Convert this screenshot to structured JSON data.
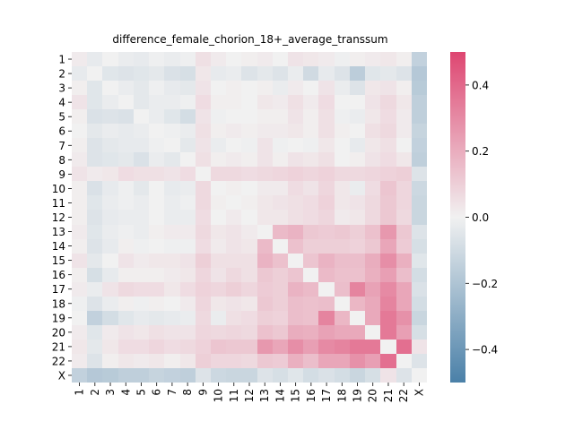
{
  "chart_data": {
    "type": "heatmap",
    "title": "difference_female_chorion_18+_average_transsum",
    "xlabel": "",
    "ylabel": "",
    "x_categories": [
      "1",
      "2",
      "3",
      "4",
      "5",
      "6",
      "7",
      "8",
      "9",
      "10",
      "11",
      "12",
      "13",
      "14",
      "15",
      "16",
      "17",
      "18",
      "19",
      "20",
      "21",
      "22",
      "X"
    ],
    "y_categories": [
      "1",
      "2",
      "3",
      "4",
      "5",
      "6",
      "7",
      "8",
      "9",
      "10",
      "11",
      "12",
      "13",
      "14",
      "15",
      "16",
      "17",
      "18",
      "19",
      "20",
      "21",
      "22",
      "X"
    ],
    "values": [
      [
        0.02,
        -0.03,
        0.0,
        -0.02,
        -0.03,
        -0.01,
        -0.02,
        -0.01,
        0.05,
        0.02,
        0.0,
        0.01,
        0.02,
        0.0,
        0.04,
        0.03,
        0.02,
        -0.01,
        0.01,
        0.02,
        0.03,
        0.01,
        -0.14
      ],
      [
        -0.03,
        0.0,
        -0.05,
        -0.06,
        -0.05,
        -0.04,
        -0.07,
        -0.08,
        0.03,
        -0.03,
        -0.02,
        -0.06,
        -0.04,
        -0.06,
        -0.02,
        -0.1,
        -0.03,
        -0.06,
        -0.16,
        -0.05,
        -0.04,
        -0.06,
        -0.18
      ],
      [
        0.01,
        -0.05,
        0.0,
        -0.02,
        -0.04,
        -0.01,
        -0.03,
        -0.04,
        0.04,
        0.0,
        0.01,
        0.0,
        0.01,
        -0.02,
        0.02,
        0.0,
        0.04,
        -0.02,
        -0.06,
        0.03,
        0.04,
        0.01,
        -0.17
      ],
      [
        0.04,
        -0.05,
        -0.02,
        0.0,
        -0.04,
        -0.02,
        -0.02,
        -0.01,
        0.06,
        0.01,
        0.01,
        0.0,
        0.03,
        0.02,
        0.05,
        0.02,
        0.06,
        0.0,
        0.0,
        0.04,
        0.07,
        0.03,
        -0.15
      ],
      [
        0.01,
        -0.07,
        -0.06,
        -0.07,
        0.0,
        -0.02,
        -0.05,
        -0.09,
        0.04,
        -0.01,
        0.0,
        0.0,
        0.01,
        0.01,
        0.04,
        0.01,
        0.05,
        -0.01,
        -0.02,
        0.03,
        0.06,
        0.02,
        -0.15
      ],
      [
        0.0,
        -0.04,
        -0.02,
        -0.03,
        -0.02,
        0.0,
        -0.01,
        -0.02,
        0.05,
        0.01,
        0.02,
        0.01,
        0.02,
        0.02,
        0.03,
        0.01,
        0.05,
        0.01,
        0.0,
        0.05,
        0.07,
        0.02,
        -0.13
      ],
      [
        0.01,
        -0.06,
        -0.04,
        -0.03,
        -0.03,
        -0.01,
        0.0,
        -0.04,
        0.04,
        -0.02,
        0.0,
        -0.01,
        0.04,
        -0.01,
        0.0,
        -0.01,
        0.03,
        0.0,
        -0.03,
        0.03,
        0.05,
        0.0,
        -0.14
      ],
      [
        0.02,
        -0.06,
        -0.05,
        -0.04,
        -0.07,
        -0.02,
        -0.04,
        0.0,
        0.05,
        0.01,
        0.02,
        0.01,
        0.04,
        0.01,
        0.04,
        0.03,
        0.05,
        0.0,
        0.01,
        0.04,
        0.06,
        0.03,
        -0.15
      ],
      [
        0.04,
        0.02,
        0.03,
        0.06,
        0.05,
        0.05,
        0.04,
        0.06,
        0.0,
        0.07,
        0.07,
        0.06,
        0.07,
        0.08,
        0.09,
        0.08,
        0.09,
        0.07,
        0.07,
        0.08,
        0.09,
        0.1,
        -0.06
      ],
      [
        0.01,
        -0.07,
        -0.03,
        -0.01,
        -0.04,
        0.0,
        -0.03,
        -0.02,
        0.07,
        0.0,
        0.01,
        0.0,
        0.02,
        0.02,
        0.06,
        0.04,
        0.08,
        0.03,
        -0.02,
        0.06,
        0.13,
        0.08,
        -0.11
      ],
      [
        0.01,
        -0.05,
        -0.02,
        -0.01,
        -0.02,
        0.0,
        -0.02,
        -0.01,
        0.07,
        0.01,
        0.0,
        0.01,
        0.03,
        0.04,
        0.05,
        0.06,
        0.09,
        0.03,
        0.04,
        0.07,
        0.12,
        0.08,
        -0.12
      ],
      [
        0.01,
        -0.06,
        -0.03,
        -0.02,
        -0.02,
        0.0,
        -0.02,
        -0.02,
        0.06,
        0.0,
        0.02,
        0.0,
        0.03,
        0.03,
        0.05,
        0.06,
        0.08,
        0.02,
        0.03,
        0.07,
        0.12,
        0.07,
        -0.12
      ],
      [
        0.02,
        -0.05,
        -0.02,
        -0.01,
        -0.02,
        0.01,
        0.02,
        0.02,
        0.07,
        0.03,
        0.04,
        0.02,
        0.0,
        0.16,
        0.18,
        0.12,
        0.11,
        0.12,
        0.1,
        0.14,
        0.26,
        0.12,
        -0.06
      ],
      [
        0.01,
        -0.06,
        -0.03,
        0.01,
        -0.01,
        0.0,
        -0.01,
        -0.01,
        0.06,
        0.02,
        0.04,
        0.03,
        0.16,
        0.0,
        0.14,
        0.1,
        0.1,
        0.1,
        0.09,
        0.12,
        0.22,
        0.11,
        -0.08
      ],
      [
        0.04,
        -0.04,
        0.0,
        0.04,
        0.02,
        0.03,
        0.03,
        0.04,
        0.1,
        0.05,
        0.05,
        0.05,
        0.18,
        0.14,
        0.0,
        0.13,
        0.18,
        0.15,
        0.15,
        0.2,
        0.29,
        0.19,
        -0.05
      ],
      [
        0.01,
        -0.08,
        -0.03,
        0.01,
        0.01,
        0.01,
        0.02,
        0.03,
        0.08,
        0.04,
        0.07,
        0.05,
        0.12,
        0.1,
        0.13,
        0.0,
        0.16,
        0.14,
        0.14,
        0.19,
        0.24,
        0.15,
        -0.09
      ],
      [
        0.02,
        -0.02,
        0.04,
        0.07,
        0.06,
        0.06,
        0.03,
        0.06,
        0.09,
        0.08,
        0.1,
        0.08,
        0.11,
        0.1,
        0.18,
        0.16,
        0.0,
        0.15,
        0.32,
        0.23,
        0.3,
        0.22,
        -0.07
      ],
      [
        -0.01,
        -0.06,
        -0.02,
        0.01,
        -0.01,
        0.01,
        0.0,
        0.02,
        0.08,
        0.03,
        0.04,
        0.03,
        0.12,
        0.1,
        0.15,
        0.14,
        0.15,
        0.0,
        0.17,
        0.21,
        0.32,
        0.22,
        -0.09
      ],
      [
        0.0,
        -0.14,
        -0.09,
        -0.05,
        -0.03,
        -0.04,
        -0.03,
        -0.02,
        0.07,
        -0.02,
        0.05,
        0.06,
        0.1,
        0.09,
        0.15,
        0.14,
        0.32,
        0.17,
        0.0,
        0.21,
        0.35,
        0.28,
        -0.12
      ],
      [
        0.02,
        -0.05,
        0.02,
        0.04,
        0.03,
        0.05,
        0.04,
        0.04,
        0.08,
        0.07,
        0.08,
        0.07,
        0.14,
        0.12,
        0.2,
        0.19,
        0.23,
        0.21,
        0.21,
        0.0,
        0.35,
        0.24,
        -0.08
      ],
      [
        0.03,
        -0.04,
        0.03,
        0.06,
        0.06,
        0.08,
        0.06,
        0.07,
        0.09,
        0.13,
        0.12,
        0.12,
        0.26,
        0.22,
        0.29,
        0.24,
        0.3,
        0.32,
        0.35,
        0.35,
        0.0,
        0.38,
        0.04
      ],
      [
        0.02,
        -0.06,
        0.01,
        0.03,
        0.02,
        0.03,
        0.01,
        0.03,
        0.1,
        0.08,
        0.08,
        0.07,
        0.12,
        0.11,
        0.19,
        0.15,
        0.22,
        0.22,
        0.28,
        0.24,
        0.38,
        0.0,
        -0.06
      ],
      [
        -0.14,
        -0.18,
        -0.17,
        -0.15,
        -0.15,
        -0.13,
        -0.14,
        -0.15,
        -0.06,
        -0.11,
        -0.12,
        -0.12,
        -0.06,
        -0.08,
        -0.05,
        -0.09,
        -0.07,
        -0.09,
        -0.12,
        -0.08,
        0.04,
        -0.06,
        0.0
      ]
    ],
    "colorbar": {
      "vmin": -0.5,
      "vmax": 0.5,
      "ticks": [
        0.4,
        0.2,
        0.0,
        -0.2,
        -0.4
      ],
      "tick_labels": [
        "0.4",
        "0.2",
        "0.0",
        "−0.2",
        "−0.4"
      ],
      "colormap": [
        "#4a80a8",
        "#f1f1f1",
        "#de4671"
      ]
    },
    "grid": false,
    "legend": "right"
  }
}
